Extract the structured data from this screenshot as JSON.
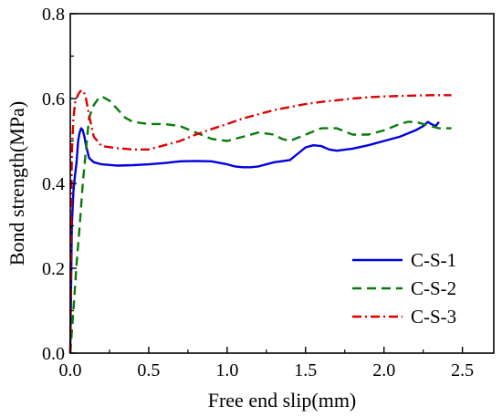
{
  "chart_data": {
    "type": "line",
    "title": "",
    "xlabel": "Free end slip(mm)",
    "ylabel": "Bond strength(MPa)",
    "xlim": [
      0.0,
      2.7
    ],
    "ylim": [
      0.0,
      0.8
    ],
    "xticks": [
      0.0,
      0.5,
      1.0,
      1.5,
      2.0,
      2.5
    ],
    "xtick_labels": [
      "0.0",
      "0.5",
      "1.0",
      "1.5",
      "2.0",
      "2.5"
    ],
    "yticks": [
      0.0,
      0.2,
      0.4,
      0.6,
      0.8
    ],
    "ytick_labels": [
      "0.0",
      "0.2",
      "0.4",
      "0.6",
      "0.8"
    ],
    "grid": false,
    "legend_position": "bottom-right",
    "series": [
      {
        "name": "C-S-1",
        "color": "#0000dd",
        "style": "solid",
        "x": [
          0.0,
          0.01,
          0.02,
          0.03,
          0.04,
          0.05,
          0.06,
          0.07,
          0.08,
          0.09,
          0.1,
          0.12,
          0.15,
          0.2,
          0.3,
          0.4,
          0.5,
          0.6,
          0.7,
          0.8,
          0.9,
          1.0,
          1.05,
          1.1,
          1.15,
          1.2,
          1.3,
          1.4,
          1.45,
          1.5,
          1.55,
          1.6,
          1.65,
          1.7,
          1.8,
          1.9,
          2.0,
          2.1,
          2.2,
          2.25,
          2.28,
          2.3,
          2.33,
          2.35
        ],
        "y": [
          0.0,
          0.3,
          0.38,
          0.42,
          0.45,
          0.5,
          0.52,
          0.53,
          0.525,
          0.51,
          0.49,
          0.46,
          0.45,
          0.445,
          0.442,
          0.443,
          0.445,
          0.448,
          0.452,
          0.453,
          0.452,
          0.445,
          0.44,
          0.438,
          0.438,
          0.44,
          0.45,
          0.455,
          0.47,
          0.485,
          0.49,
          0.488,
          0.48,
          0.477,
          0.482,
          0.49,
          0.5,
          0.51,
          0.525,
          0.535,
          0.545,
          0.54,
          0.535,
          0.545
        ]
      },
      {
        "name": "C-S-2",
        "color": "#0a7a0a",
        "style": "dashed",
        "x": [
          0.0,
          0.02,
          0.04,
          0.06,
          0.08,
          0.1,
          0.12,
          0.15,
          0.18,
          0.2,
          0.25,
          0.3,
          0.35,
          0.4,
          0.5,
          0.6,
          0.7,
          0.8,
          0.9,
          1.0,
          1.1,
          1.2,
          1.3,
          1.35,
          1.4,
          1.5,
          1.6,
          1.7,
          1.8,
          1.9,
          2.0,
          2.1,
          2.15,
          2.2,
          2.25,
          2.3,
          2.35,
          2.4,
          2.43
        ],
        "y": [
          0.0,
          0.1,
          0.21,
          0.3,
          0.4,
          0.48,
          0.555,
          0.585,
          0.6,
          0.605,
          0.595,
          0.575,
          0.555,
          0.545,
          0.54,
          0.54,
          0.535,
          0.52,
          0.505,
          0.5,
          0.51,
          0.52,
          0.515,
          0.505,
          0.5,
          0.515,
          0.53,
          0.53,
          0.515,
          0.515,
          0.525,
          0.54,
          0.545,
          0.545,
          0.54,
          0.535,
          0.53,
          0.53,
          0.53
        ]
      },
      {
        "name": "C-S-3",
        "color": "#dd0000",
        "style": "dashdot",
        "x": [
          0.0,
          0.01,
          0.02,
          0.03,
          0.05,
          0.07,
          0.09,
          0.1,
          0.12,
          0.15,
          0.2,
          0.3,
          0.4,
          0.5,
          0.6,
          0.7,
          0.8,
          0.9,
          1.0,
          1.1,
          1.2,
          1.3,
          1.4,
          1.5,
          1.6,
          1.7,
          1.8,
          1.9,
          2.0,
          2.1,
          2.2,
          2.3,
          2.4,
          2.43
        ],
        "y": [
          0.0,
          0.47,
          0.55,
          0.59,
          0.61,
          0.62,
          0.612,
          0.6,
          0.56,
          0.51,
          0.488,
          0.483,
          0.48,
          0.48,
          0.49,
          0.5,
          0.515,
          0.528,
          0.54,
          0.553,
          0.563,
          0.573,
          0.58,
          0.587,
          0.592,
          0.596,
          0.6,
          0.603,
          0.605,
          0.606,
          0.607,
          0.608,
          0.608,
          0.608
        ]
      }
    ]
  }
}
